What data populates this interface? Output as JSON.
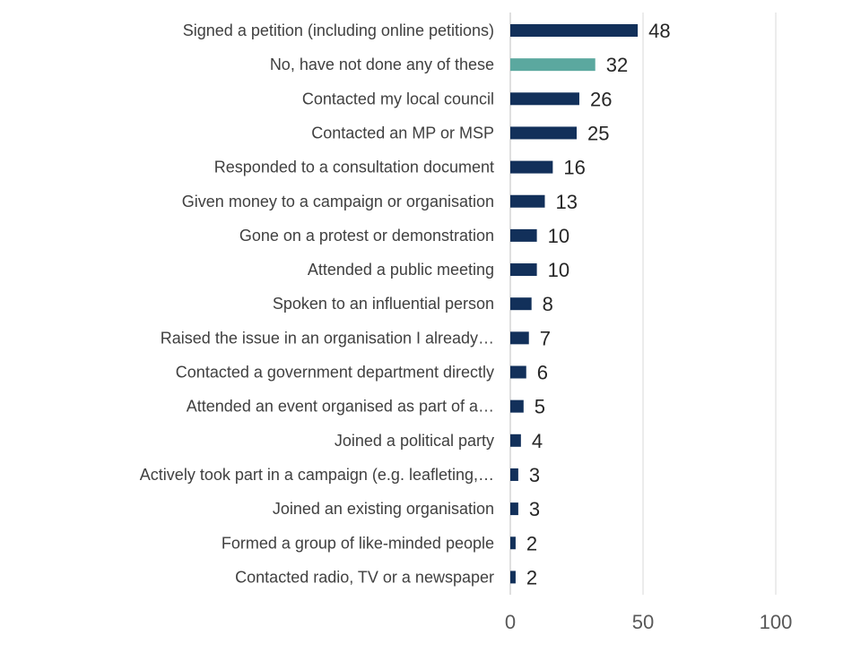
{
  "chart_data": {
    "type": "bar",
    "orientation": "horizontal",
    "categories": [
      "Signed a petition (including online petitions)",
      "No, have not done any of these",
      "Contacted my local council",
      "Contacted an MP or MSP",
      "Responded to a consultation document",
      "Given money to a campaign or organisation",
      "Gone on a protest or demonstration",
      "Attended a public meeting",
      "Spoken to an influential person",
      "Raised the issue in an organisation I already…",
      "Contacted a government department directly",
      "Attended an event organised as part of a…",
      "Joined a political party",
      "Actively took part in a campaign (e.g. leafleting,…",
      "Joined an existing organisation",
      "Formed a group of like-minded people",
      "Contacted radio, TV or a newspaper"
    ],
    "values": [
      48,
      32,
      26,
      25,
      16,
      13,
      10,
      10,
      8,
      7,
      6,
      5,
      4,
      3,
      3,
      2,
      2
    ],
    "value_labels": [
      "48",
      "32",
      "26",
      "25",
      "16",
      "13",
      "10",
      "10",
      "8",
      "7",
      "6",
      "5",
      "4",
      "3",
      "3",
      "2",
      "2"
    ],
    "bar_colors": [
      "#12305a",
      "#5ba89f",
      "#12305a",
      "#12305a",
      "#12305a",
      "#12305a",
      "#12305a",
      "#12305a",
      "#12305a",
      "#12305a",
      "#12305a",
      "#12305a",
      "#12305a",
      "#12305a",
      "#12305a",
      "#12305a",
      "#12305a"
    ],
    "xlim": [
      0,
      100
    ],
    "xticks": [
      0,
      50,
      100
    ],
    "xtick_labels": [
      "0",
      "50",
      "100"
    ],
    "grid": true,
    "title": "",
    "xlabel": "",
    "ylabel": ""
  }
}
